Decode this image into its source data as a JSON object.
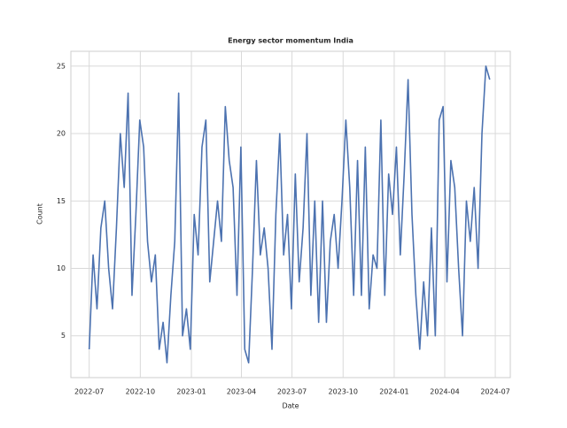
{
  "chart_data": {
    "type": "line",
    "title": "Energy sector momentum India",
    "x_label": "Date",
    "y_label": "Count",
    "x": [
      "2022-07-01",
      "2022-07-08",
      "2022-07-15",
      "2022-07-22",
      "2022-07-29",
      "2022-08-05",
      "2022-08-12",
      "2022-08-19",
      "2022-08-26",
      "2022-09-02",
      "2022-09-09",
      "2022-09-16",
      "2022-09-23",
      "2022-09-30",
      "2022-10-07",
      "2022-10-14",
      "2022-10-21",
      "2022-10-28",
      "2022-11-04",
      "2022-11-11",
      "2022-11-18",
      "2022-11-25",
      "2022-12-02",
      "2022-12-09",
      "2022-12-16",
      "2022-12-23",
      "2022-12-30",
      "2023-01-06",
      "2023-01-13",
      "2023-01-20",
      "2023-01-27",
      "2023-02-03",
      "2023-02-10",
      "2023-02-17",
      "2023-02-24",
      "2023-03-03",
      "2023-03-10",
      "2023-03-17",
      "2023-03-24",
      "2023-03-31",
      "2023-04-07",
      "2023-04-14",
      "2023-04-21",
      "2023-04-28",
      "2023-05-05",
      "2023-05-12",
      "2023-05-19",
      "2023-05-26",
      "2023-06-02",
      "2023-06-09",
      "2023-06-16",
      "2023-06-23",
      "2023-06-30",
      "2023-07-07",
      "2023-07-14",
      "2023-07-21",
      "2023-07-28",
      "2023-08-04",
      "2023-08-11",
      "2023-08-18",
      "2023-08-25",
      "2023-09-01",
      "2023-09-08",
      "2023-09-15",
      "2023-09-22",
      "2023-09-29",
      "2023-10-06",
      "2023-10-13",
      "2023-10-20",
      "2023-10-27",
      "2023-11-03",
      "2023-11-10",
      "2023-11-17",
      "2023-11-24",
      "2023-12-01",
      "2023-12-08",
      "2023-12-15",
      "2023-12-22",
      "2023-12-29",
      "2024-01-05",
      "2024-01-12",
      "2024-01-19",
      "2024-01-26",
      "2024-02-02",
      "2024-02-09",
      "2024-02-16",
      "2024-02-23",
      "2024-03-01",
      "2024-03-08",
      "2024-03-15",
      "2024-03-22",
      "2024-03-29",
      "2024-04-05",
      "2024-04-12",
      "2024-04-19",
      "2024-04-26",
      "2024-05-03",
      "2024-05-10",
      "2024-05-17",
      "2024-05-24",
      "2024-05-31",
      "2024-06-07",
      "2024-06-14",
      "2024-06-21"
    ],
    "series": [
      {
        "name": "Count",
        "color": "#4c72b0",
        "values": [
          4,
          11,
          7,
          13,
          15,
          10,
          7,
          13,
          20,
          16,
          23,
          8,
          14,
          21,
          19,
          12,
          9,
          11,
          4,
          6,
          3,
          8,
          12,
          23,
          5,
          7,
          4,
          14,
          11,
          19,
          21,
          9,
          12,
          15,
          12,
          22,
          18,
          16,
          8,
          19,
          4,
          3,
          10,
          18,
          11,
          13,
          10,
          4,
          14,
          20,
          11,
          14,
          7,
          17,
          9,
          13,
          20,
          8,
          15,
          6,
          15,
          6,
          12,
          14,
          10,
          15,
          21,
          16,
          8,
          18,
          8,
          19,
          7,
          11,
          10,
          21,
          8,
          17,
          14,
          19,
          11,
          17,
          24,
          14,
          8,
          4,
          9,
          5,
          13,
          5,
          21,
          22,
          9,
          18,
          16,
          10,
          5,
          15,
          12,
          16,
          10,
          20,
          25,
          24
        ]
      }
    ],
    "xlim": [
      "2022-05-29",
      "2024-07-28"
    ],
    "xticks": [
      {
        "value": "2022-07-01",
        "label": "2022-07"
      },
      {
        "value": "2022-10-01",
        "label": "2022-10"
      },
      {
        "value": "2023-01-01",
        "label": "2023-01"
      },
      {
        "value": "2023-04-01",
        "label": "2023-04"
      },
      {
        "value": "2023-07-01",
        "label": "2023-07"
      },
      {
        "value": "2023-10-01",
        "label": "2023-10"
      },
      {
        "value": "2024-01-01",
        "label": "2024-01"
      },
      {
        "value": "2024-04-01",
        "label": "2024-04"
      },
      {
        "value": "2024-07-01",
        "label": "2024-07"
      }
    ],
    "ylim": [
      1.9,
      26.1
    ],
    "yticks": [
      5,
      10,
      15,
      20,
      25
    ],
    "grid": true
  }
}
